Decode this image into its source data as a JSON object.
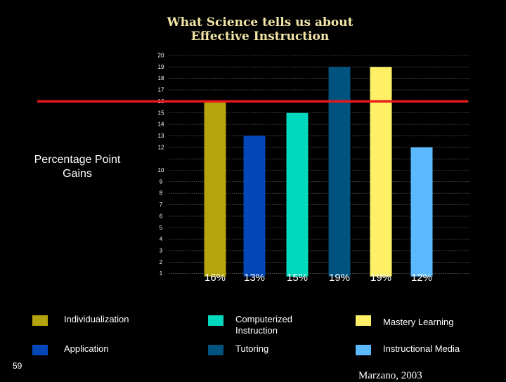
{
  "title_lines": [
    "What Science tells us about",
    "Effective Instruction"
  ],
  "ylabel_lines": [
    "Percentage Point",
    "Gains"
  ],
  "slide_number": "59",
  "citation": "Marzano, 2003",
  "chart_data": {
    "type": "bar",
    "categories": [
      "Individualization",
      "Application",
      "Computerized Instruction",
      "Tutoring",
      "Mastery Learning",
      "Instructional Media"
    ],
    "values": [
      16,
      13,
      15,
      19,
      19,
      12
    ],
    "value_labels": [
      "16%",
      "13%",
      "15%",
      "19%",
      "19%",
      "12%"
    ],
    "colors": [
      "#B5A40E",
      "#0447B8",
      "#00D9BD",
      "#00537E",
      "#FDF066",
      "#5BBAFF"
    ],
    "ytick_labels": [
      "20",
      "19",
      "18",
      "17",
      "16",
      "15",
      "14",
      "13",
      "12",
      "10",
      "9",
      "8",
      "7",
      "6",
      "5",
      "4",
      "3",
      "2",
      "1"
    ],
    "ylim": [
      0,
      20
    ],
    "reference_line": {
      "value": 16,
      "color": "#E8181D"
    },
    "grid": true
  },
  "legend": [
    {
      "label": "Individualization",
      "color": "#B5A40E"
    },
    {
      "label": "Application",
      "color": "#0447B8"
    },
    {
      "label": "Computerized\nInstruction",
      "color": "#00D9BD"
    },
    {
      "label": "Tutoring",
      "color": "#00537E"
    },
    {
      "label": "Mastery Learning",
      "color": "#FDF066"
    },
    {
      "label": "Instructional Media",
      "color": "#5BBAFF"
    }
  ]
}
